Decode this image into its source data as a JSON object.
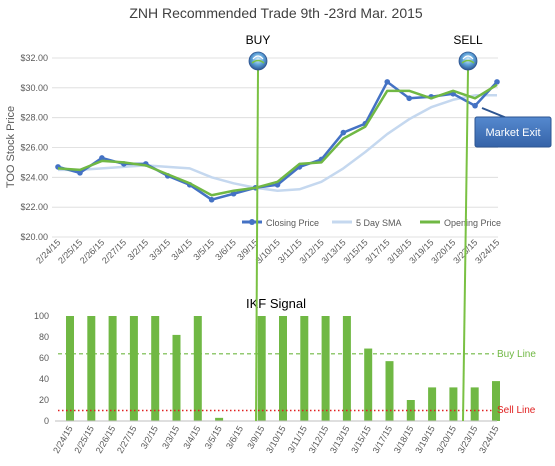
{
  "title": "ZNH Recommended Trade 9th -23rd Mar. 2015",
  "annotations": {
    "buy": "BUY",
    "sell": "SELL",
    "market_exit": "Market Exit",
    "buy_line": "Buy Line",
    "sell_line": "Sell Line"
  },
  "colors": {
    "closing": "#4472c4",
    "sma": "#c5d8ef",
    "opening": "#70b844",
    "bar": "#70b844",
    "signal_line": "#7ac143",
    "buy_line": "#70b844",
    "sell_line": "#e02020",
    "exit_box": "#3d6fb6",
    "exit_box_border": "#2d5591",
    "grid": "#d9d9d9",
    "axis_text": "#595959",
    "title_text": "#404040"
  },
  "chart_data": [
    {
      "type": "line",
      "ylabel": "TOO Stock Price",
      "ylim": [
        20,
        32
      ],
      "ytick_labels": [
        "$20.00",
        "$22.00",
        "$24.00",
        "$26.00",
        "$28.00",
        "$30.00",
        "$32.00"
      ],
      "categories": [
        "2/24/15",
        "2/25/15",
        "2/26/15",
        "2/27/15",
        "3/2/15",
        "3/3/15",
        "3/4/15",
        "3/5/15",
        "3/6/15",
        "3/9/15",
        "3/10/15",
        "3/11/15",
        "3/12/15",
        "3/13/15",
        "3/15/15",
        "3/17/15",
        "3/18/15",
        "3/19/15",
        "3/20/15",
        "3/23/15",
        "3/24/15"
      ],
      "grid": true,
      "legend": "bottom-right",
      "series": [
        {
          "name": "Closing Price",
          "values": [
            24.7,
            24.3,
            25.3,
            24.9,
            24.9,
            24.1,
            23.5,
            22.5,
            22.9,
            23.3,
            23.5,
            24.7,
            25.2,
            27.0,
            27.6,
            30.4,
            29.3,
            29.4,
            29.6,
            28.8,
            30.4
          ]
        },
        {
          "name": "5 Day SMA",
          "values": [
            24.5,
            24.5,
            24.6,
            24.7,
            24.8,
            24.7,
            24.6,
            24.0,
            23.6,
            23.3,
            23.1,
            23.2,
            23.7,
            24.6,
            25.7,
            26.9,
            27.9,
            28.7,
            29.2,
            29.5,
            29.5
          ]
        },
        {
          "name": "Opening Price",
          "values": [
            24.6,
            24.5,
            25.1,
            25.0,
            24.8,
            24.2,
            23.6,
            22.8,
            23.1,
            23.3,
            23.7,
            24.9,
            25.0,
            26.6,
            27.4,
            29.8,
            29.8,
            29.3,
            29.8,
            29.3,
            30.2
          ]
        }
      ]
    },
    {
      "type": "bar",
      "title": "IKF Signal",
      "ylim": [
        0,
        100
      ],
      "ytick_labels": [
        "0",
        "20",
        "40",
        "60",
        "80",
        "100"
      ],
      "categories": [
        "2/24/15",
        "2/25/15",
        "2/26/15",
        "2/27/15",
        "3/2/15",
        "3/3/15",
        "3/4/15",
        "3/5/15",
        "3/6/15",
        "3/9/15",
        "3/10/15",
        "3/11/15",
        "3/12/15",
        "3/13/15",
        "3/15/15",
        "3/17/15",
        "3/18/15",
        "3/19/15",
        "3/20/15",
        "3/23/15",
        "3/24/15"
      ],
      "values": [
        100,
        100,
        100,
        100,
        100,
        82,
        100,
        3,
        0,
        100,
        100,
        100,
        100,
        100,
        69,
        57,
        20,
        32,
        32,
        32,
        38
      ],
      "reference_lines": [
        {
          "name": "Buy Line",
          "value": 64
        },
        {
          "name": "Sell Line",
          "value": 10
        }
      ]
    }
  ]
}
